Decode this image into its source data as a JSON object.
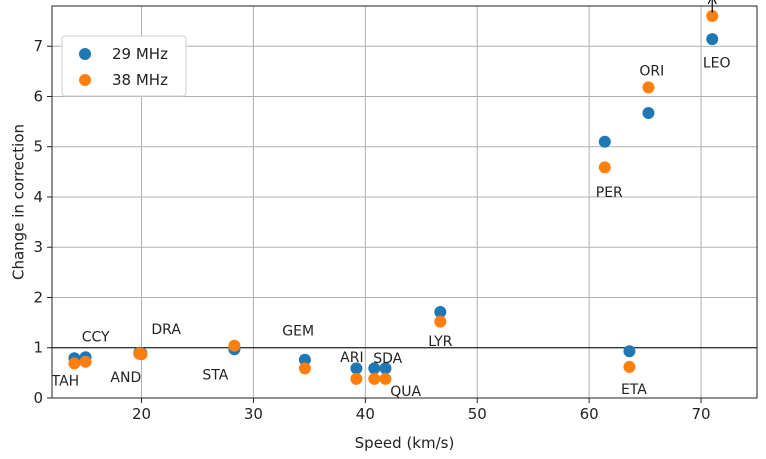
{
  "chart_data": {
    "type": "scatter",
    "xlabel": "Speed (km/s)",
    "ylabel": "Change in correction",
    "xlim": [
      12,
      75
    ],
    "ylim": [
      0,
      7.8
    ],
    "x_ticks": [
      20,
      30,
      40,
      50,
      60,
      70
    ],
    "y_ticks": [
      0,
      1,
      2,
      3,
      4,
      5,
      6,
      7
    ],
    "grid": true,
    "legend_position": "top-left",
    "reference_line_y": 1,
    "series": [
      {
        "name": "29 MHz",
        "color": "#1f77b4",
        "points": [
          {
            "x": 14.0,
            "y": 0.79
          },
          {
            "x": 15.0,
            "y": 0.81
          },
          {
            "x": 19.8,
            "y": 0.9
          },
          {
            "x": 20.0,
            "y": 0.89
          },
          {
            "x": 28.3,
            "y": 0.97
          },
          {
            "x": 34.6,
            "y": 0.76
          },
          {
            "x": 39.2,
            "y": 0.59
          },
          {
            "x": 40.8,
            "y": 0.59
          },
          {
            "x": 41.8,
            "y": 0.59
          },
          {
            "x": 46.7,
            "y": 1.71
          },
          {
            "x": 61.4,
            "y": 5.1
          },
          {
            "x": 63.6,
            "y": 0.93
          },
          {
            "x": 65.3,
            "y": 5.67
          },
          {
            "x": 71.0,
            "y": 7.14
          }
        ]
      },
      {
        "name": "38 MHz",
        "color": "#ff7f0e",
        "points": [
          {
            "x": 14.0,
            "y": 0.69
          },
          {
            "x": 15.0,
            "y": 0.72
          },
          {
            "x": 19.8,
            "y": 0.88
          },
          {
            "x": 20.0,
            "y": 0.87
          },
          {
            "x": 28.3,
            "y": 1.04
          },
          {
            "x": 34.6,
            "y": 0.59
          },
          {
            "x": 39.2,
            "y": 0.38
          },
          {
            "x": 40.8,
            "y": 0.38
          },
          {
            "x": 41.8,
            "y": 0.38
          },
          {
            "x": 46.7,
            "y": 1.52
          },
          {
            "x": 61.4,
            "y": 4.59
          },
          {
            "x": 63.6,
            "y": 0.62
          },
          {
            "x": 65.3,
            "y": 6.18
          },
          {
            "x": 71.0,
            "y": 7.6
          }
        ]
      }
    ],
    "annotations": [
      {
        "text": "TAH",
        "x": 13.2,
        "y": 0.35
      },
      {
        "text": "CCY",
        "x": 15.9,
        "y": 1.22
      },
      {
        "text": "AND",
        "x": 18.6,
        "y": 0.42
      },
      {
        "text": "DRA",
        "x": 22.2,
        "y": 1.37
      },
      {
        "text": "STA",
        "x": 26.6,
        "y": 0.47
      },
      {
        "text": "GEM",
        "x": 34.0,
        "y": 1.34
      },
      {
        "text": "ARI",
        "x": 38.8,
        "y": 0.82
      },
      {
        "text": "SDA",
        "x": 42.0,
        "y": 0.8
      },
      {
        "text": "QUA",
        "x": 43.6,
        "y": 0.14
      },
      {
        "text": "LYR",
        "x": 46.7,
        "y": 1.13
      },
      {
        "text": "PER",
        "x": 61.8,
        "y": 4.1
      },
      {
        "text": "ETA",
        "x": 64.0,
        "y": 0.18
      },
      {
        "text": "ORI",
        "x": 65.6,
        "y": 6.52
      },
      {
        "text": "LEO",
        "x": 71.4,
        "y": 6.68
      }
    ],
    "arrow": {
      "x": 71.0,
      "y_from": 7.67,
      "y_to": 8.0
    }
  }
}
